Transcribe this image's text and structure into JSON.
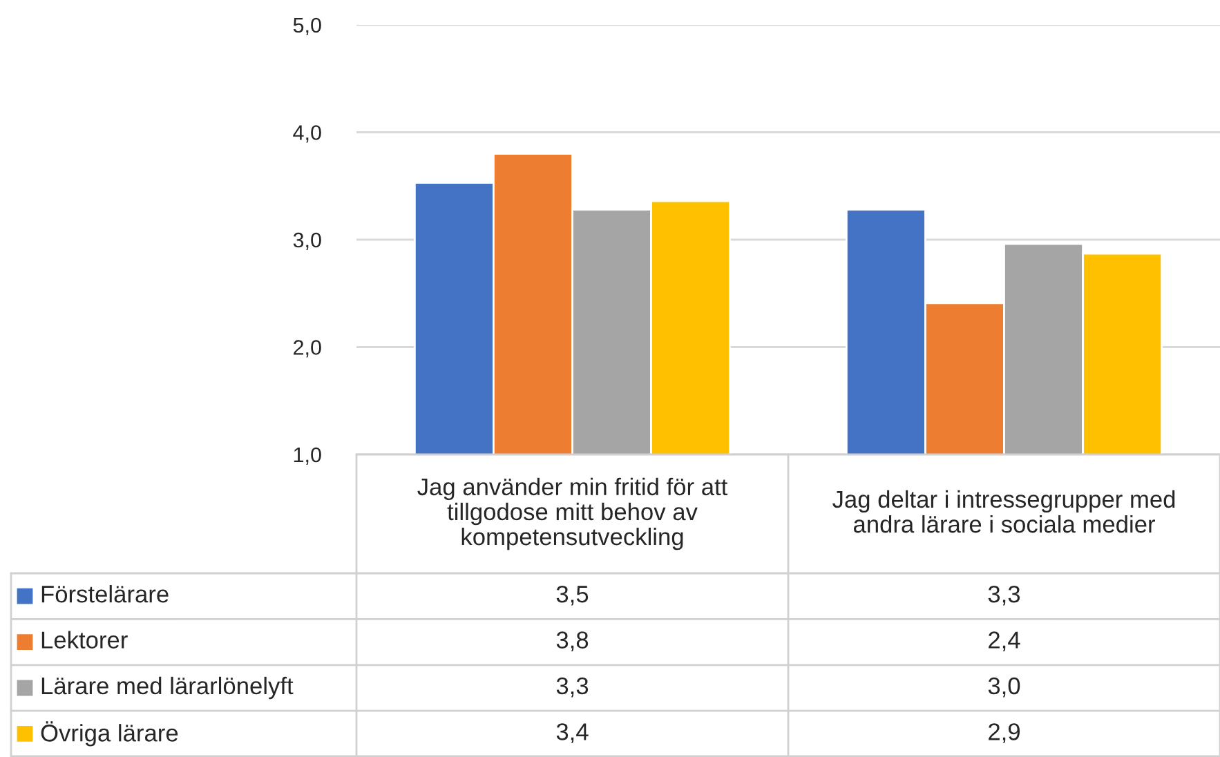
{
  "chart_data": {
    "type": "bar",
    "categories": [
      "Jag använder min fritid för att tillgodose mitt behov av kompetensutveckling",
      "Jag deltar i intressegrupper med andra lärare i sociala medier"
    ],
    "series": [
      {
        "name": "Förstelärare",
        "color": "#4472c4",
        "values": [
          3.53,
          3.28
        ],
        "value_labels": [
          "3,5",
          "3,3"
        ]
      },
      {
        "name": "Lektorer",
        "color": "#ed7d31",
        "values": [
          3.8,
          2.41
        ],
        "value_labels": [
          "3,8",
          "2,4"
        ]
      },
      {
        "name": "Lärare med lärarlönelyft",
        "color": "#a5a5a5",
        "values": [
          3.28,
          2.96
        ],
        "value_labels": [
          "3,3",
          "3,0"
        ]
      },
      {
        "name": "Övriga lärare",
        "color": "#ffc000",
        "values": [
          3.36,
          2.87
        ],
        "value_labels": [
          "3,4",
          "2,9"
        ]
      }
    ],
    "ylim": [
      1,
      5
    ],
    "yticks": [
      {
        "value": 1,
        "label": "1,0"
      },
      {
        "value": 2,
        "label": "2,0"
      },
      {
        "value": 3,
        "label": "3,0"
      },
      {
        "value": 4,
        "label": "4,0"
      },
      {
        "value": 5,
        "label": "5,0"
      }
    ],
    "grid": "y",
    "legend": "bottom"
  }
}
